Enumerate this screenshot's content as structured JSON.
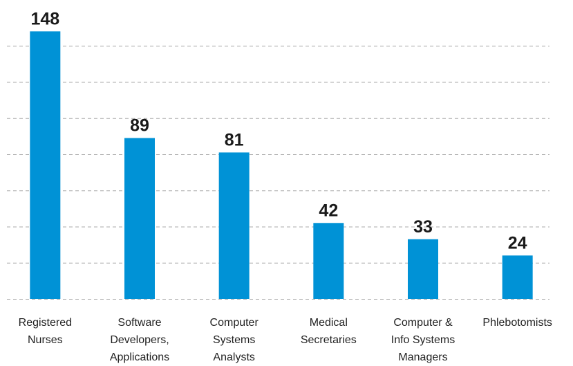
{
  "chart_data": {
    "type": "bar",
    "categories": [
      "Registered\nNurses",
      "Software\nDevelopers,\nApplications",
      "Computer\nSystems\nAnalysts",
      "Medical\nSecretaries",
      "Computer &\nInfo Systems\nManagers",
      "Phlebotomists"
    ],
    "values": [
      148,
      89,
      81,
      42,
      33,
      24
    ],
    "color": "#0092d6",
    "ylim": [
      0,
      160
    ],
    "yticks": [
      0,
      20,
      40,
      60,
      80,
      100,
      120,
      140
    ],
    "grid": true
  }
}
